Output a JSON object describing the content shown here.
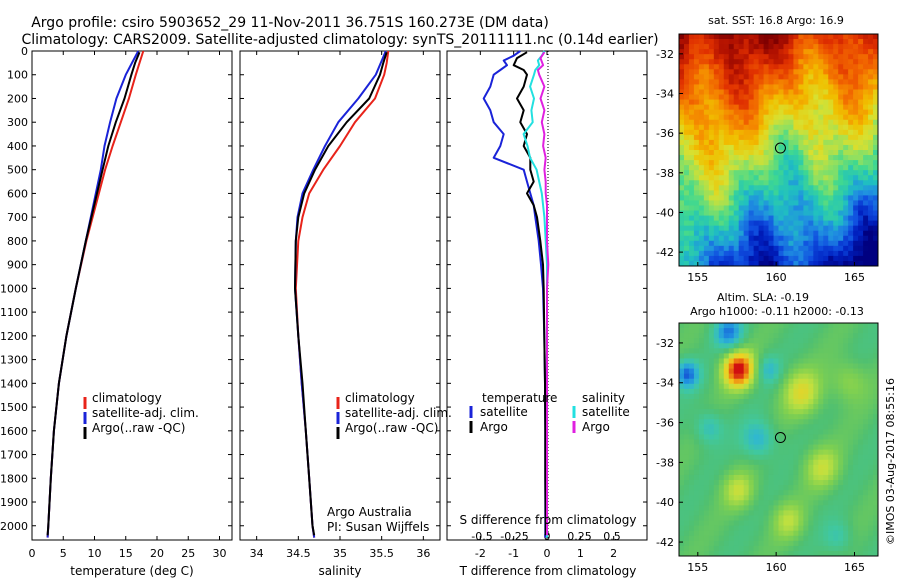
{
  "header": {
    "title_line1": "Argo profile: csiro 5903652_29 11-Nov-2011 36.751S 160.273E (DM data)",
    "title_line2": "Climatology: CARS2009. Satellite-adjusted climatology: synTS_20111111.nc (0.14d earlier)"
  },
  "colors": {
    "climatology": "#e8231a",
    "satellite": "#1a23d8",
    "argo": "#000000",
    "sat_salinity": "#22e0e0",
    "argo_salinity": "#e020e0"
  },
  "chart_data": [
    {
      "id": "temperature",
      "type": "line",
      "xlabel": "temperature (deg C)",
      "ylabel": "",
      "xlim": [
        0,
        32
      ],
      "ylim": [
        2060,
        0
      ],
      "xticks": [
        "0",
        "5",
        "10",
        "15",
        "20",
        "25",
        "30"
      ],
      "xtick_values": [
        0,
        5,
        10,
        15,
        20,
        25,
        30
      ],
      "yticks": [
        "0",
        "100",
        "200",
        "300",
        "400",
        "500",
        "600",
        "700",
        "800",
        "900",
        "1000",
        "1100",
        "1200",
        "1300",
        "1400",
        "1500",
        "1600",
        "1700",
        "1800",
        "1900",
        "2000"
      ],
      "ytick_values": [
        0,
        100,
        200,
        300,
        400,
        500,
        600,
        700,
        800,
        900,
        1000,
        1100,
        1200,
        1300,
        1400,
        1500,
        1600,
        1700,
        1800,
        1900,
        2000
      ],
      "legend": [
        "climatology",
        "satellite-adj. clim.",
        "Argo(..raw -QC)"
      ],
      "series": [
        {
          "name": "climatology",
          "color": "#e8231a",
          "depth": [
            0,
            50,
            100,
            200,
            300,
            400,
            500,
            600,
            700,
            800,
            1000,
            1200,
            1400,
            1600,
            1800,
            2000,
            2050
          ],
          "values": [
            17.8,
            17.2,
            16.6,
            15.5,
            14.2,
            12.9,
            11.7,
            10.7,
            9.7,
            8.7,
            7.0,
            5.5,
            4.3,
            3.5,
            3.0,
            2.6,
            2.5
          ]
        },
        {
          "name": "satellite-adj. clim.",
          "color": "#1a23d8",
          "depth": [
            0,
            50,
            100,
            200,
            300,
            400,
            500,
            600,
            700,
            800,
            1000,
            1200,
            1400,
            1600,
            1800,
            2000,
            2050
          ],
          "values": [
            17.0,
            16.0,
            15.0,
            13.5,
            12.5,
            11.6,
            11.0,
            10.2,
            9.4,
            8.6,
            7.0,
            5.5,
            4.3,
            3.5,
            3.0,
            2.6,
            2.5
          ]
        },
        {
          "name": "Argo(..raw -QC)",
          "color": "#000000",
          "depth": [
            5,
            50,
            100,
            200,
            300,
            400,
            500,
            600,
            700,
            800,
            1000,
            1200,
            1400,
            1600,
            1800,
            2000,
            2040
          ],
          "values": [
            17.2,
            16.5,
            15.9,
            14.8,
            13.4,
            12.2,
            11.3,
            10.4,
            9.5,
            8.6,
            7.0,
            5.5,
            4.3,
            3.5,
            3.0,
            2.6,
            2.5
          ]
        }
      ]
    },
    {
      "id": "salinity",
      "type": "line",
      "xlabel": "salinity",
      "ylabel": "",
      "xlim": [
        33.8,
        36.2
      ],
      "ylim": [
        2060,
        0
      ],
      "xticks": [
        "34",
        "34.5",
        "35",
        "35.5",
        "36"
      ],
      "xtick_values": [
        34,
        34.5,
        35,
        35.5,
        36
      ],
      "legend": [
        "climatology",
        "satellite-adj. clim.",
        "Argo(..raw -QC)"
      ],
      "annotations": [
        "Argo Australia",
        "PI: Susan Wijffels"
      ],
      "series": [
        {
          "name": "climatology",
          "color": "#e8231a",
          "depth": [
            0,
            50,
            100,
            200,
            300,
            400,
            500,
            600,
            700,
            800,
            1000,
            1200,
            1400,
            1600,
            1800,
            2000,
            2050
          ],
          "values": [
            35.58,
            35.56,
            35.53,
            35.42,
            35.18,
            35.0,
            34.8,
            34.63,
            34.55,
            34.5,
            34.47,
            34.5,
            34.54,
            34.59,
            34.63,
            34.67,
            34.69
          ]
        },
        {
          "name": "satellite-adj. clim.",
          "color": "#1a23d8",
          "depth": [
            0,
            50,
            100,
            200,
            300,
            400,
            500,
            600,
            700,
            800,
            1000,
            1200,
            1400,
            1600,
            1800,
            2000,
            2050
          ],
          "values": [
            35.55,
            35.49,
            35.43,
            35.22,
            34.98,
            34.82,
            34.68,
            34.55,
            34.49,
            34.47,
            34.46,
            34.5,
            34.54,
            34.59,
            34.63,
            34.67,
            34.69
          ]
        },
        {
          "name": "Argo(..raw -QC)",
          "color": "#000000",
          "depth": [
            5,
            50,
            100,
            200,
            300,
            400,
            500,
            600,
            700,
            800,
            1000,
            1200,
            1400,
            1600,
            1800,
            2000,
            2040
          ],
          "values": [
            35.56,
            35.52,
            35.48,
            35.35,
            35.08,
            34.86,
            34.7,
            34.57,
            34.5,
            34.47,
            34.46,
            34.5,
            34.55,
            34.59,
            34.63,
            34.67,
            34.69
          ]
        }
      ]
    },
    {
      "id": "difference",
      "type": "line",
      "xlabel": "T difference from climatology",
      "x2label": "S difference from climatology",
      "xlim": [
        -3.0,
        3.0
      ],
      "ylim": [
        2060,
        0
      ],
      "xticks": [
        "-2",
        "-1",
        "0",
        "1",
        "2"
      ],
      "xtick_values": [
        -2,
        -1,
        0,
        1,
        2
      ],
      "x2ticks": [
        "-0.5",
        "-0.25",
        "0",
        "0.25",
        "0.5"
      ],
      "x2tick_values": [
        -0.5,
        -0.25,
        0,
        0.25,
        0.5
      ],
      "legend_temperature_title": "temperature",
      "legend_salinity_title": "salinity",
      "legend": [
        "satellite",
        "Argo",
        "satellite",
        "Argo"
      ],
      "series": [
        {
          "name": "T satellite",
          "color": "#1a23d8",
          "scale": "T",
          "depth": [
            0,
            20,
            40,
            60,
            80,
            100,
            150,
            200,
            250,
            300,
            350,
            400,
            450,
            500,
            550,
            600,
            650,
            700,
            800,
            900,
            1000,
            1200,
            1400,
            1600,
            1800,
            2000,
            2050
          ],
          "values": [
            -0.8,
            -1.0,
            -1.3,
            -1.2,
            -1.4,
            -1.6,
            -1.7,
            -1.9,
            -1.7,
            -1.6,
            -1.3,
            -1.4,
            -1.6,
            -0.7,
            -0.6,
            -0.5,
            -0.4,
            -0.35,
            -0.25,
            -0.18,
            -0.12,
            -0.08,
            -0.06,
            -0.05,
            -0.05,
            -0.05,
            -0.05
          ]
        },
        {
          "name": "T Argo",
          "color": "#000000",
          "scale": "T",
          "depth": [
            5,
            30,
            60,
            80,
            100,
            150,
            200,
            250,
            300,
            350,
            400,
            450,
            500,
            550,
            600,
            650,
            700,
            800,
            900,
            1000,
            1200,
            1400,
            1600,
            1800,
            2000,
            2040
          ],
          "values": [
            -0.6,
            -0.9,
            -1.0,
            -0.7,
            -0.6,
            -0.7,
            -0.9,
            -0.7,
            -0.8,
            -0.6,
            -0.7,
            -0.5,
            -0.5,
            -0.4,
            -0.6,
            -0.4,
            -0.3,
            -0.2,
            -0.12,
            -0.1,
            -0.08,
            -0.06,
            -0.05,
            -0.05,
            -0.04,
            -0.04
          ]
        },
        {
          "name": "S satellite",
          "color": "#22e0e0",
          "scale": "S",
          "depth": [
            0,
            20,
            40,
            60,
            80,
            100,
            150,
            200,
            250,
            300,
            350,
            400,
            450,
            500,
            550,
            600,
            650,
            700,
            800,
            900,
            1000,
            1200,
            1400,
            1600,
            1800,
            2000,
            2050
          ],
          "values": [
            -0.02,
            -0.04,
            -0.07,
            -0.06,
            -0.09,
            -0.1,
            -0.13,
            -0.1,
            -0.12,
            -0.11,
            -0.18,
            -0.15,
            -0.13,
            -0.08,
            -0.06,
            -0.04,
            -0.03,
            -0.02,
            -0.01,
            0.0,
            0.0,
            0.0,
            0.0,
            0.0,
            0.0,
            0.0,
            0.0
          ]
        },
        {
          "name": "S Argo",
          "color": "#e020e0",
          "scale": "S",
          "depth": [
            5,
            30,
            60,
            80,
            100,
            150,
            200,
            250,
            300,
            350,
            400,
            450,
            500,
            550,
            600,
            650,
            700,
            800,
            900,
            1000,
            1200,
            1400,
            1600,
            1800,
            2000,
            2040
          ],
          "values": [
            -0.02,
            -0.05,
            -0.03,
            -0.07,
            -0.06,
            -0.02,
            -0.05,
            -0.02,
            -0.04,
            -0.02,
            -0.03,
            -0.01,
            -0.02,
            -0.01,
            -0.01,
            0.0,
            0.0,
            0.0,
            0.01,
            0.0,
            0.0,
            0.0,
            0.0,
            0.0,
            0.0,
            0.0
          ]
        }
      ]
    },
    {
      "id": "sst-map",
      "type": "heatmap",
      "title": "sat. SST: 16.8  Argo: 16.9",
      "xlim": [
        153.8,
        166.5
      ],
      "ylim": [
        -42.7,
        -31.0
      ],
      "xticks": [
        "155",
        "160",
        "165"
      ],
      "xtick_values": [
        155,
        160,
        165
      ],
      "yticks": [
        "-32",
        "-34",
        "-36",
        "-38",
        "-40",
        "-42"
      ],
      "ytick_values": [
        -32,
        -34,
        -36,
        -38,
        -40,
        -42
      ],
      "marker_lon": 160.273,
      "marker_lat": -36.751,
      "colormap": [
        "#800000",
        "#b01000",
        "#e03000",
        "#f06000",
        "#f59000",
        "#f0c000",
        "#d8e030",
        "#90e060",
        "#40d890",
        "#20c0c0",
        "#2090e0",
        "#1050e0",
        "#0020c0",
        "#000080"
      ]
    },
    {
      "id": "sla-map",
      "type": "heatmap",
      "title": "Altim. SLA: -0.19",
      "subtitle": "Argo h1000: -0.11  h2000: -0.13",
      "xlim": [
        153.8,
        166.5
      ],
      "ylim": [
        -42.7,
        -31.0
      ],
      "xticks": [
        "155",
        "160",
        "165"
      ],
      "xtick_values": [
        155,
        160,
        165
      ],
      "yticks": [
        "-32",
        "-34",
        "-36",
        "-38",
        "-40",
        "-42"
      ],
      "ytick_values": [
        -32,
        -34,
        -36,
        -38,
        -40,
        -42
      ],
      "marker_lon": 160.273,
      "marker_lat": -36.751,
      "colormap": [
        "#1040d0",
        "#2090e0",
        "#30b8d0",
        "#40c8a0",
        "#50c070",
        "#80d050",
        "#c0e040",
        "#f0d020",
        "#f08010",
        "#d01010"
      ]
    }
  ],
  "footer": {
    "watermark": "©IMOS 03-Aug-2017 08:55:16"
  }
}
